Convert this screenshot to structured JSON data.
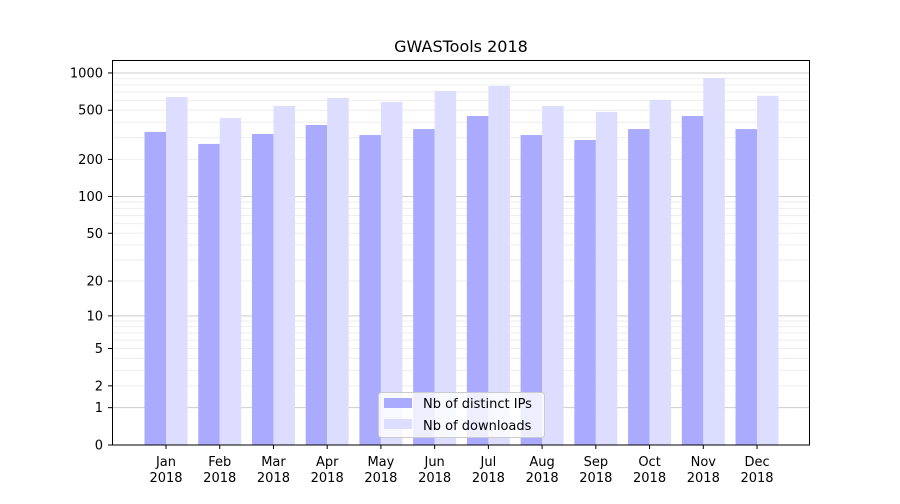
{
  "chart_data": {
    "type": "bar",
    "title": "GWASTools 2018",
    "xlabel": "",
    "ylabel": "",
    "y_scale": "log(1+y)",
    "ylim": [
      0,
      1270
    ],
    "yticks": [
      0,
      1,
      2,
      5,
      10,
      20,
      50,
      100,
      200,
      500,
      1000
    ],
    "grid": true,
    "legend_position": "bottom-center",
    "categories": [
      [
        "Jan",
        "2018"
      ],
      [
        "Feb",
        "2018"
      ],
      [
        "Mar",
        "2018"
      ],
      [
        "Apr",
        "2018"
      ],
      [
        "May",
        "2018"
      ],
      [
        "Jun",
        "2018"
      ],
      [
        "Jul",
        "2018"
      ],
      [
        "Aug",
        "2018"
      ],
      [
        "Sep",
        "2018"
      ],
      [
        "Oct",
        "2018"
      ],
      [
        "Nov",
        "2018"
      ],
      [
        "Dec",
        "2018"
      ]
    ],
    "series": [
      {
        "name": "Nb of distinct IPs",
        "color": "#aaaaff",
        "values": [
          334,
          267,
          321,
          380,
          315,
          352,
          449,
          315,
          287,
          352,
          449,
          352
        ]
      },
      {
        "name": "Nb of downloads",
        "color": "#ddddff",
        "values": [
          639,
          433,
          541,
          628,
          583,
          715,
          785,
          541,
          484,
          605,
          911,
          653
        ]
      }
    ]
  }
}
